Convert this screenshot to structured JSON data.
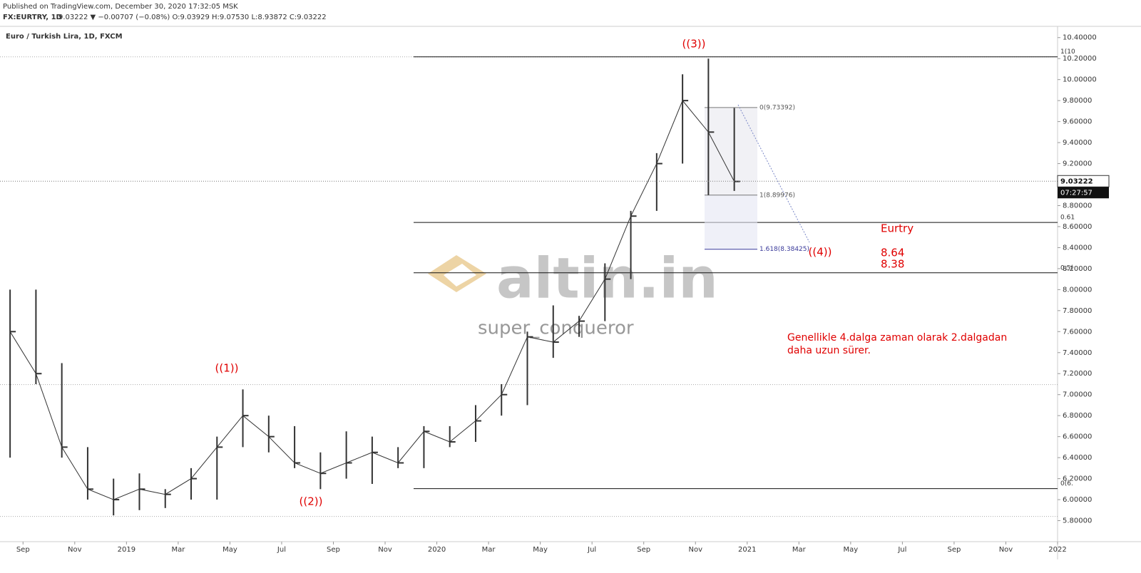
{
  "header": {
    "published": "Published on TradingView.com, December 30, 2020 17:32:05 MSK",
    "symbol": "FX:EURTRY, 1D",
    "ohlc": "9.03222 ▼ −0.00707 (−0.08%) O:9.03929 H:9.07530 L:8.93872 C:9.03222"
  },
  "chart_data": {
    "type": "ohlc",
    "title": "Euro / Turkish Lira, 1D, FXCM",
    "x": [
      "2018-08",
      "2018-09",
      "2018-10",
      "2018-11",
      "2018-12",
      "2019-01",
      "2019-02",
      "2019-03",
      "2019-04",
      "2019-05",
      "2019-06",
      "2019-07",
      "2019-08",
      "2019-09",
      "2019-10",
      "2019-11",
      "2019-12",
      "2020-01",
      "2020-02",
      "2020-03",
      "2020-04",
      "2020-05",
      "2020-06",
      "2020-07",
      "2020-08",
      "2020-09",
      "2020-10",
      "2020-11",
      "2020-12"
    ],
    "high": [
      8.0,
      8.0,
      7.3,
      6.5,
      6.2,
      6.25,
      6.1,
      6.3,
      6.6,
      7.05,
      6.8,
      6.7,
      6.45,
      6.65,
      6.6,
      6.5,
      6.7,
      6.7,
      6.9,
      7.1,
      7.6,
      7.85,
      7.75,
      8.25,
      8.75,
      9.3,
      10.05,
      10.2,
      9.73
    ],
    "low": [
      6.4,
      7.1,
      6.4,
      6.0,
      5.85,
      5.9,
      5.92,
      6.0,
      6.0,
      6.5,
      6.45,
      6.3,
      6.1,
      6.2,
      6.15,
      6.3,
      6.3,
      6.5,
      6.55,
      6.8,
      6.9,
      7.35,
      7.55,
      7.7,
      8.1,
      8.75,
      9.2,
      8.9,
      8.94
    ],
    "close": [
      7.6,
      7.2,
      6.5,
      6.1,
      6.0,
      6.1,
      6.05,
      6.2,
      6.5,
      6.8,
      6.6,
      6.35,
      6.25,
      6.35,
      6.45,
      6.35,
      6.65,
      6.55,
      6.75,
      7.0,
      7.55,
      7.5,
      7.7,
      8.1,
      8.7,
      9.2,
      9.8,
      9.5,
      9.03
    ],
    "color": "#333333",
    "xlim": [
      "2018-08",
      "2022-01"
    ],
    "xticks": [
      {
        "value": "2018-09",
        "label": "Sep"
      },
      {
        "value": "2018-11",
        "label": "Nov"
      },
      {
        "value": "2019-01",
        "label": "2019"
      },
      {
        "value": "2019-03",
        "label": "Mar"
      },
      {
        "value": "2019-05",
        "label": "May"
      },
      {
        "value": "2019-07",
        "label": "Jul"
      },
      {
        "value": "2019-09",
        "label": "Sep"
      },
      {
        "value": "2019-11",
        "label": "Nov"
      },
      {
        "value": "2020-01",
        "label": "2020"
      },
      {
        "value": "2020-03",
        "label": "Mar"
      },
      {
        "value": "2020-05",
        "label": "May"
      },
      {
        "value": "2020-07",
        "label": "Jul"
      },
      {
        "value": "2020-09",
        "label": "Sep"
      },
      {
        "value": "2020-11",
        "label": "Nov"
      },
      {
        "value": "2021-01",
        "label": "2021"
      },
      {
        "value": "2021-03",
        "label": "Mar"
      },
      {
        "value": "2021-05",
        "label": "May"
      },
      {
        "value": "2021-07",
        "label": "Jul"
      },
      {
        "value": "2021-09",
        "label": "Sep"
      },
      {
        "value": "2021-11",
        "label": "Nov"
      },
      {
        "value": "2022-01",
        "label": "2022"
      }
    ],
    "ylim": [
      5.6,
      10.5
    ],
    "yticks": [
      {
        "value": 5.8,
        "label": "5.80000"
      },
      {
        "value": 6.0,
        "label": "6.00000"
      },
      {
        "value": 6.2,
        "label": "6.20000"
      },
      {
        "value": 6.4,
        "label": "6.40000"
      },
      {
        "value": 6.6,
        "label": "6.60000"
      },
      {
        "value": 6.8,
        "label": "6.80000"
      },
      {
        "value": 7.0,
        "label": "7.00000"
      },
      {
        "value": 7.2,
        "label": "7.20000"
      },
      {
        "value": 7.4,
        "label": "7.40000"
      },
      {
        "value": 7.6,
        "label": "7.60000"
      },
      {
        "value": 7.8,
        "label": "7.80000"
      },
      {
        "value": 8.0,
        "label": "8.00000"
      },
      {
        "value": 8.2,
        "label": "8.20000"
      },
      {
        "value": 8.4,
        "label": "8.40000"
      },
      {
        "value": 8.6,
        "label": "8.60000"
      },
      {
        "value": 8.8,
        "label": "8.80000"
      },
      {
        "value": 9.0,
        "label": "9.00000"
      },
      {
        "value": 9.2,
        "label": "9.20000"
      },
      {
        "value": 9.4,
        "label": "9.40000"
      },
      {
        "value": 9.6,
        "label": "9.60000"
      },
      {
        "value": 9.8,
        "label": "9.80000"
      },
      {
        "value": 10.0,
        "label": "10.00000"
      },
      {
        "value": 10.2,
        "label": "10.20000"
      },
      {
        "value": 10.4,
        "label": "10.40000"
      }
    ],
    "last_price": {
      "value": 9.03222,
      "label": "9.03222"
    },
    "countdown": "07:27:57",
    "dotted_levels": [
      10.217,
      7.096,
      5.84
    ],
    "fib_levels": [
      {
        "value": 10.217,
        "label": "1(10"
      },
      {
        "value": 8.64,
        "label": "0.61"
      },
      {
        "value": 8.16,
        "label": "0.5("
      },
      {
        "value": 6.105,
        "label": "0(6."
      }
    ],
    "fib_extension": [
      {
        "value": 9.73392,
        "label": "0(9.73392)"
      },
      {
        "value": 8.89976,
        "label": "1(8.89976)"
      },
      {
        "value": 8.38425,
        "label": "1.618(8.38425)"
      }
    ],
    "waves": [
      "((1))",
      "((2))",
      "((3))",
      "((4))"
    ],
    "note_title": "Eurtry",
    "note_targets": [
      "8.64",
      "8.38"
    ],
    "comment": [
      "Genellikle 4.dalga zaman olarak 2.dalgadan",
      "daha uzun sürer."
    ],
    "watermark": [
      "altin.in",
      "super_conqueror"
    ]
  }
}
